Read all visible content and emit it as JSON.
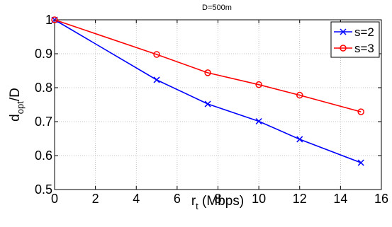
{
  "chart_data": {
    "type": "line",
    "title": "D=500m",
    "xlabel": {
      "main": "r",
      "sub": "t",
      "rest": " (Mbps)"
    },
    "ylabel": {
      "main": "d",
      "sub": "opt",
      "rest": "/D"
    },
    "xlim": [
      0,
      16
    ],
    "ylim": [
      0.5,
      1.0
    ],
    "xticks": [
      0,
      2,
      4,
      6,
      8,
      10,
      12,
      14,
      16
    ],
    "yticks": [
      0.5,
      0.6,
      0.7,
      0.8,
      0.9,
      1.0
    ],
    "ytick_labels": [
      "0.5",
      "0.6",
      "0.7",
      "0.8",
      "0.9",
      "1"
    ],
    "grid": true,
    "legend_position": "top-right",
    "series": [
      {
        "name": "s=2",
        "color": "#0000ff",
        "marker": "x",
        "x": [
          0,
          5,
          7.5,
          10,
          12,
          15
        ],
        "y": [
          1.0,
          0.823,
          0.752,
          0.701,
          0.648,
          0.579
        ]
      },
      {
        "name": "s=3",
        "color": "#ff0000",
        "marker": "o",
        "x": [
          0,
          5,
          7.5,
          10,
          12,
          15
        ],
        "y": [
          1.0,
          0.898,
          0.844,
          0.809,
          0.778,
          0.729
        ]
      }
    ]
  }
}
